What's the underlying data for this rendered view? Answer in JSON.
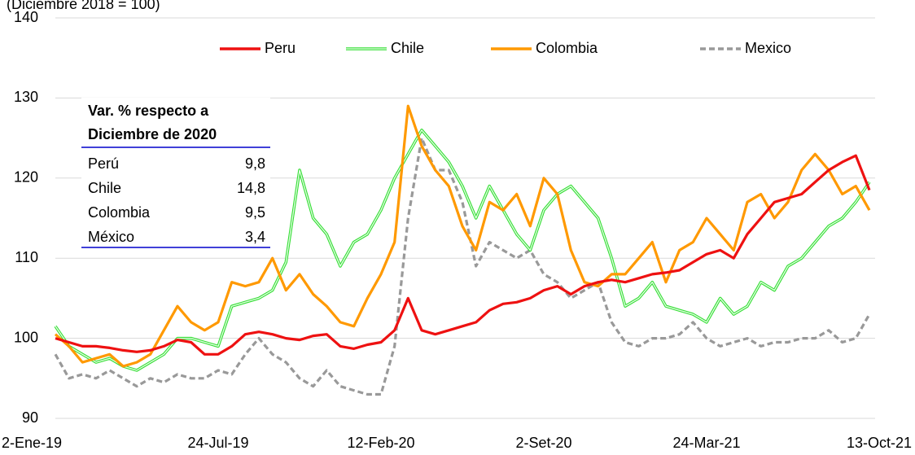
{
  "chart_data": {
    "type": "line",
    "subtitle": "(Diciembre 2018 = 100)",
    "categories": [
      "2-Ene-19",
      null,
      null,
      null,
      null,
      null,
      null,
      null,
      null,
      null,
      null,
      null,
      "24-Jul-19",
      null,
      null,
      null,
      null,
      null,
      null,
      null,
      null,
      null,
      null,
      null,
      "12-Feb-20",
      null,
      null,
      null,
      null,
      null,
      null,
      null,
      null,
      null,
      null,
      null,
      "2-Set-20",
      null,
      null,
      null,
      null,
      null,
      null,
      null,
      null,
      null,
      null,
      null,
      "24-Mar-21",
      null,
      null,
      null,
      null,
      null,
      null,
      null,
      null,
      null,
      null,
      null,
      "13-Oct-21"
    ],
    "ylim": [
      90,
      140
    ],
    "yticks": [
      90,
      100,
      110,
      120,
      130,
      140
    ],
    "grid": true,
    "legend": "top",
    "series": [
      {
        "name": "Peru",
        "color": "#ee1111",
        "style": "solid",
        "values": [
          100,
          99.5,
          99,
          99,
          98.8,
          98.5,
          98.3,
          98.5,
          99,
          99.8,
          99.5,
          98,
          98,
          99,
          100.5,
          100.8,
          100.5,
          100,
          99.8,
          100.3,
          100.5,
          99,
          98.7,
          99.2,
          99.5,
          101,
          105,
          101,
          100.5,
          101,
          101.5,
          102,
          103.5,
          104.3,
          104.5,
          105,
          106,
          106.5,
          105.5,
          106.5,
          107,
          107.3,
          107,
          107.5,
          108,
          108.2,
          108.5,
          109.5,
          110.5,
          111,
          110,
          113,
          115,
          117,
          117.5,
          118,
          119.5,
          121,
          122,
          122.8,
          118.5
        ]
      },
      {
        "name": "Chile",
        "color": "#33dd33",
        "style": "double",
        "values": [
          101.5,
          99,
          98,
          97,
          97.5,
          96.5,
          96,
          97,
          98,
          100,
          100,
          99.5,
          99,
          104,
          104.5,
          105,
          106,
          109.5,
          121,
          115,
          113,
          109,
          112,
          113,
          116,
          120,
          123,
          126,
          124,
          122,
          119,
          115,
          119,
          116,
          113,
          111,
          116,
          118,
          119,
          117,
          115,
          110,
          104,
          105,
          107,
          104,
          103.5,
          103,
          102,
          105,
          103,
          104,
          107,
          106,
          109,
          110,
          112,
          114,
          115,
          117,
          119.5
        ]
      },
      {
        "name": "Colombia",
        "color": "#ff9900",
        "style": "solid",
        "values": [
          100.5,
          99,
          97,
          97.5,
          98,
          96.5,
          97,
          98,
          101,
          104,
          102,
          101,
          102,
          107,
          106.5,
          107,
          110,
          106,
          108,
          105.5,
          104,
          102,
          101.5,
          105,
          108,
          112,
          129,
          124,
          121,
          119,
          114,
          111,
          117,
          116,
          118,
          114,
          120,
          118,
          111,
          107,
          106.5,
          108,
          108,
          110,
          112,
          107,
          111,
          112,
          115,
          113,
          111,
          117,
          118,
          115,
          117,
          121,
          123,
          121,
          118,
          119,
          116
        ]
      },
      {
        "name": "Mexico",
        "color": "#999999",
        "style": "dashed",
        "values": [
          98,
          95,
          95.5,
          95,
          96,
          95,
          94,
          95,
          94.5,
          95.5,
          95,
          95,
          96,
          95.5,
          98,
          100,
          98,
          97,
          95,
          94,
          96,
          94,
          93.5,
          93,
          93,
          99,
          115,
          125,
          121,
          121,
          117,
          109,
          112,
          111,
          110,
          111,
          108,
          107,
          105,
          106,
          107,
          102,
          99.5,
          99,
          100,
          100,
          100.5,
          102,
          100,
          99,
          99.5,
          100,
          99,
          99.5,
          99.5,
          100,
          100,
          101,
          99.5,
          100,
          103
        ]
      }
    ],
    "inset_table": {
      "header": [
        "Var. % respecto a",
        "Diciembre de 2020"
      ],
      "rows": [
        [
          "Perú",
          "9,8"
        ],
        [
          "Chile",
          "14,8"
        ],
        [
          "Colombia",
          "9,5"
        ],
        [
          "México",
          "3,4"
        ]
      ]
    }
  }
}
